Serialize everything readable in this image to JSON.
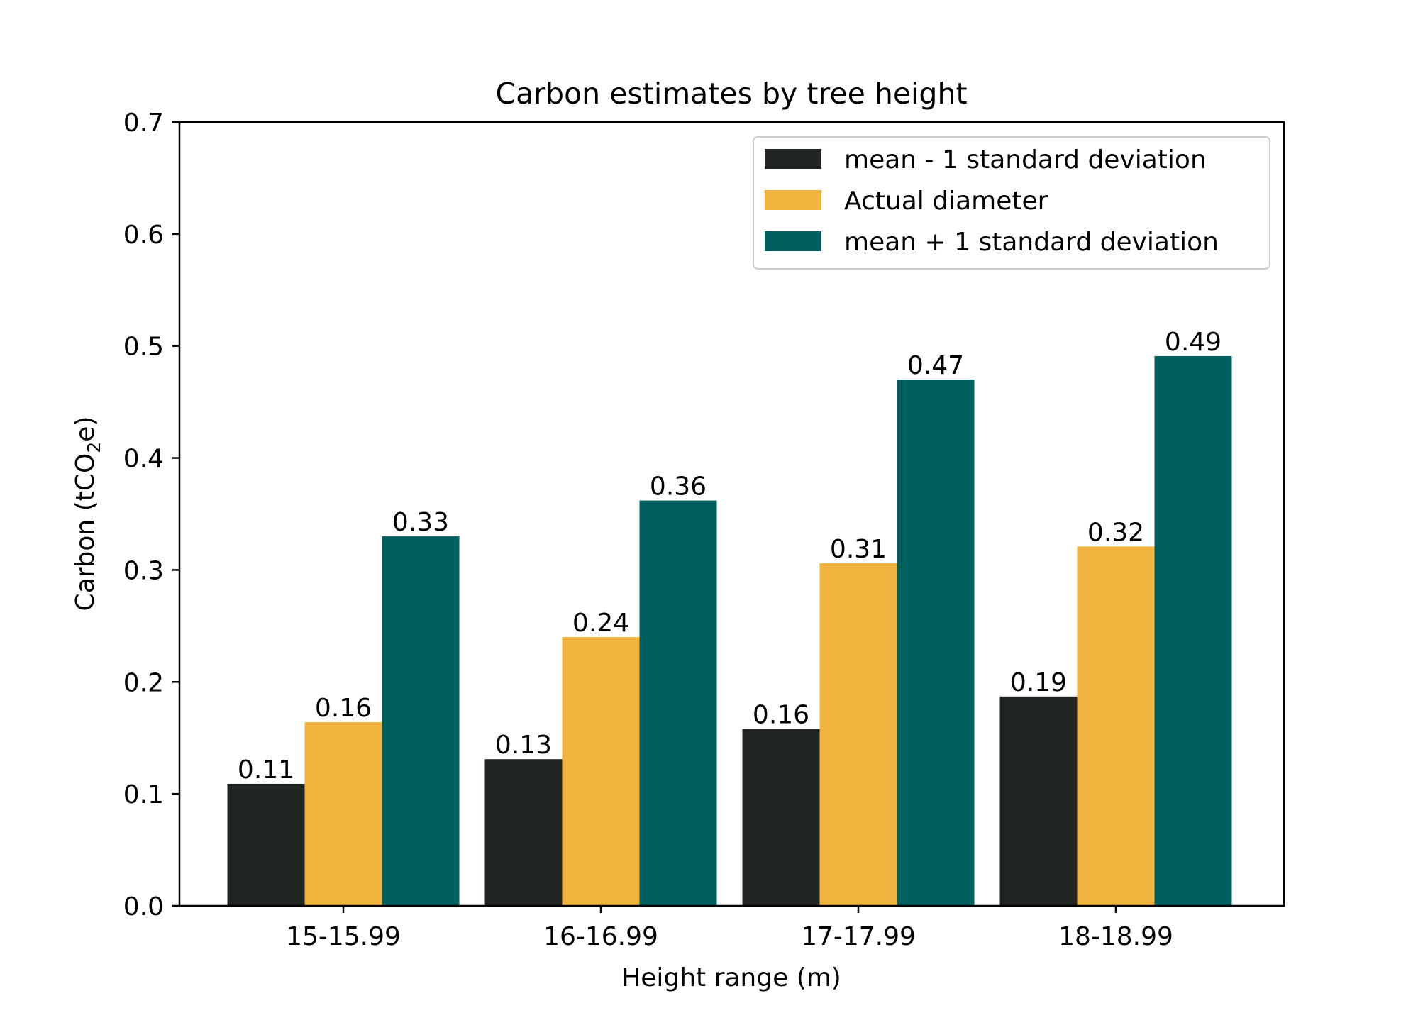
{
  "chart_data": {
    "type": "bar",
    "title": "Carbon estimates by tree height",
    "xlabel": "Height range (m)",
    "ylabel_main": "Carbon (tCO",
    "ylabel_sub": "2",
    "ylabel_tail": "e)",
    "categories": [
      "15-15.99",
      "16-16.99",
      "17-17.99",
      "18-18.99"
    ],
    "ylim": [
      0,
      0.7
    ],
    "yticks": [
      "0.0",
      "0.1",
      "0.2",
      "0.3",
      "0.4",
      "0.5",
      "0.6",
      "0.7"
    ],
    "legend_position": "top-right",
    "series": [
      {
        "name": "mean - 1 standard deviation",
        "color": "#222622",
        "values": [
          0.109,
          0.131,
          0.158,
          0.187
        ],
        "labels": [
          "0.11",
          "0.13",
          "0.16",
          "0.19"
        ]
      },
      {
        "name": "Actual diameter",
        "color": "#f0b43e",
        "values": [
          0.164,
          0.24,
          0.306,
          0.321
        ],
        "labels": [
          "0.16",
          "0.24",
          "0.31",
          "0.32"
        ]
      },
      {
        "name": "mean + 1 standard deviation",
        "color": "#006060",
        "values": [
          0.33,
          0.362,
          0.47,
          0.491
        ],
        "labels": [
          "0.33",
          "0.36",
          "0.47",
          "0.49"
        ]
      }
    ]
  }
}
